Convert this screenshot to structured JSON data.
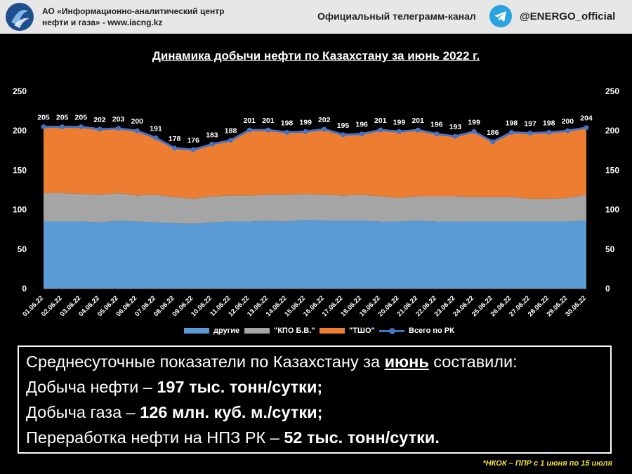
{
  "header": {
    "org_line1": "АО «Информационно-аналитический центр",
    "org_line2": "нефти и газа» - www.iacng.kz",
    "telegram_label": "Официальный телеграмм-канал",
    "telegram_handle": "@ENERGO_official"
  },
  "colors": {
    "other": "#5b9bd5",
    "kpo": "#a5a5a5",
    "tsho": "#ed7d31",
    "total": "#4472c4",
    "footnote": "#f0e040"
  },
  "chart_data": {
    "type": "area",
    "title": "Динамика добычи нефти по Казахстану за июнь 2022 г.",
    "categories": [
      "01.06.22",
      "02.06.22",
      "03.06.22",
      "04.06.22",
      "05.06.22",
      "06.06.22",
      "07.06.22",
      "08.06.22",
      "09.06.22",
      "10.06.22",
      "11.06.22",
      "12.06.22",
      "13.06.22",
      "14.06.22",
      "15.06.22",
      "16.06.22",
      "17.06.22",
      "18.06.22",
      "19.06.22",
      "20.06.22",
      "21.06.22",
      "22.06.22",
      "23.06.22",
      "24.06.22",
      "25.06.22",
      "26.06.22",
      "27.06.22",
      "28.06.22",
      "29.06.22",
      "30.06.22"
    ],
    "series": [
      {
        "name": "другие",
        "kind": "stacked-area",
        "values": [
          85,
          85,
          85,
          84,
          86,
          85,
          84,
          83,
          82,
          84,
          85,
          85,
          86,
          85,
          87,
          86,
          86,
          86,
          85,
          85,
          86,
          85,
          85,
          85,
          85,
          85,
          85,
          85,
          85,
          86
        ]
      },
      {
        "name": "\"КПО Б.В.\"",
        "kind": "stacked-area",
        "values": [
          36,
          36,
          35,
          35,
          35,
          33,
          35,
          33,
          32,
          33,
          33,
          33,
          33,
          34,
          33,
          33,
          32,
          33,
          32,
          30,
          31,
          32,
          32,
          31,
          31,
          31,
          29,
          29,
          30,
          33
        ]
      },
      {
        "name": "\"ТШО\"",
        "kind": "stacked-area",
        "values": [
          84,
          84,
          85,
          83,
          82,
          82,
          72,
          62,
          62,
          66,
          70,
          83,
          82,
          79,
          79,
          83,
          77,
          77,
          84,
          84,
          84,
          79,
          76,
          83,
          70,
          82,
          83,
          84,
          85,
          85
        ]
      },
      {
        "name": "Всего по РК",
        "kind": "line",
        "values": [
          205,
          205,
          205,
          202,
          203,
          200,
          191,
          178,
          176,
          183,
          188,
          201,
          201,
          198,
          199,
          202,
          195,
          196,
          201,
          199,
          201,
          196,
          193,
          199,
          186,
          198,
          197,
          198,
          200,
          204
        ]
      }
    ],
    "data_labels": [
      "205",
      "205",
      "205",
      "202",
      "203",
      "200",
      "191",
      "178",
      "176",
      "183",
      "188",
      "201",
      "201",
      "198",
      "199",
      "202",
      "195",
      "196",
      "201",
      "199",
      "201",
      "196",
      "193",
      "199",
      "186",
      "198",
      "197",
      "198",
      "200",
      "204"
    ],
    "y_ticks": [
      "0",
      "50",
      "100",
      "150",
      "200",
      "250"
    ],
    "ylim": [
      0,
      250
    ],
    "grid": false,
    "legend": "bottom"
  },
  "summary": {
    "line1_prefix": "Среднесуточные показатели по Казахстану за ",
    "line1_month": "июнь",
    "line1_suffix": " составили:",
    "line2_prefix": "Добыча нефти – ",
    "line2_value": "197 тыс. тонн/сутки;",
    "line3_prefix": "Добыча газа – ",
    "line3_value": "126 млн. куб. м./сутки;",
    "line4_prefix": "Переработка нефти на НПЗ РК – ",
    "line4_value": "52 тыс. тонн/сутки."
  },
  "footnote": "*НКОК – ППР с 1 июня по 15 июля"
}
